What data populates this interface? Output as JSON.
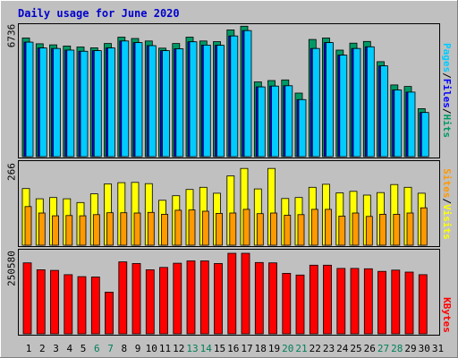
{
  "chart_data": {
    "type": "bar",
    "title": "Daily usage for June 2020",
    "categories": [
      "1",
      "2",
      "3",
      "4",
      "5",
      "6",
      "7",
      "8",
      "9",
      "10",
      "11",
      "12",
      "13",
      "14",
      "15",
      "16",
      "17",
      "18",
      "19",
      "20",
      "21",
      "22",
      "23",
      "24",
      "25",
      "26",
      "27",
      "28",
      "29",
      "30",
      "31"
    ],
    "weekend_days": [
      "6",
      "7",
      "13",
      "14",
      "20",
      "21",
      "27",
      "28"
    ],
    "panels": [
      {
        "id": "hits",
        "ymax": 6736,
        "ymax_label": "6736",
        "series": [
          {
            "name": "Hits",
            "color": "#009966",
            "values": [
              6160,
              5860,
              5800,
              5740,
              5690,
              5650,
              5870,
              6200,
              6130,
              6000,
              5630,
              5870,
              6200,
              6000,
              5970,
              6580,
              6770,
              3880,
              3950,
              3980,
              3300,
              6080,
              6160,
              5530,
              5890,
              5980,
              4930,
              3720,
              3640,
              2490,
              0
            ]
          },
          {
            "name": "Files",
            "color": "#0000FF",
            "values": [
              5940,
              5640,
              5610,
              5530,
              5470,
              5500,
              5640,
              6000,
              5920,
              5760,
              5500,
              5600,
              5960,
              5790,
              5780,
              6260,
              6540,
              3620,
              3660,
              3680,
              2960,
              5610,
              5920,
              5270,
              5610,
              5700,
              4710,
              3460,
              3350,
              2290,
              0
            ]
          },
          {
            "name": "Pages",
            "color": "#00CCFF",
            "values": [
              5940,
              5640,
              5610,
              5530,
              5470,
              5500,
              5640,
              6000,
              5920,
              5760,
              5500,
              5600,
              5960,
              5790,
              5780,
              6260,
              6540,
              3620,
              3660,
              3680,
              2960,
              5610,
              5920,
              5270,
              5610,
              5700,
              4710,
              3460,
              3350,
              2290,
              0
            ]
          }
        ],
        "axis_label_parts": [
          "Pages",
          "Files",
          "Hits"
        ]
      },
      {
        "id": "visits",
        "ymax": 266,
        "ymax_label": "266",
        "series": [
          {
            "name": "Visits",
            "color": "#FFFF00",
            "values": [
              183,
              150,
              154,
              150,
              138,
              166,
              198,
              202,
              203,
              199,
              145,
              160,
              180,
              187,
              168,
              224,
              248,
              182,
              248,
              151,
              154,
              187,
              197,
              169,
              174,
              162,
              170,
              196,
              187,
              168,
              0
            ]
          },
          {
            "name": "Sites",
            "color": "#FF9900",
            "values": [
              125,
              104,
              95,
              96,
              95,
              99,
              105,
              105,
              104,
              106,
              100,
              113,
              114,
              110,
              103,
              104,
              116,
              102,
              104,
              97,
              99,
              116,
              116,
              94,
              104,
              93,
              100,
              100,
              104,
              121,
              0
            ]
          }
        ],
        "axis_label_parts": [
          "Sites",
          "Visits"
        ]
      },
      {
        "id": "kbytes",
        "ymax": 250580,
        "ymax_label": "250580",
        "series": [
          {
            "name": "KBytes",
            "color": "#FF0000",
            "values": [
              216000,
              195000,
              193000,
              180000,
              174000,
              173000,
              127000,
              219000,
              214000,
              195000,
              202000,
              215000,
              222000,
              222000,
              214000,
              245000,
              245000,
              217000,
              216000,
              184000,
              179000,
              209000,
              209000,
              199000,
              199000,
              198000,
              190000,
              194000,
              188000,
              180000,
              0
            ]
          }
        ],
        "axis_label_parts": [
          "KBytes"
        ]
      }
    ]
  }
}
